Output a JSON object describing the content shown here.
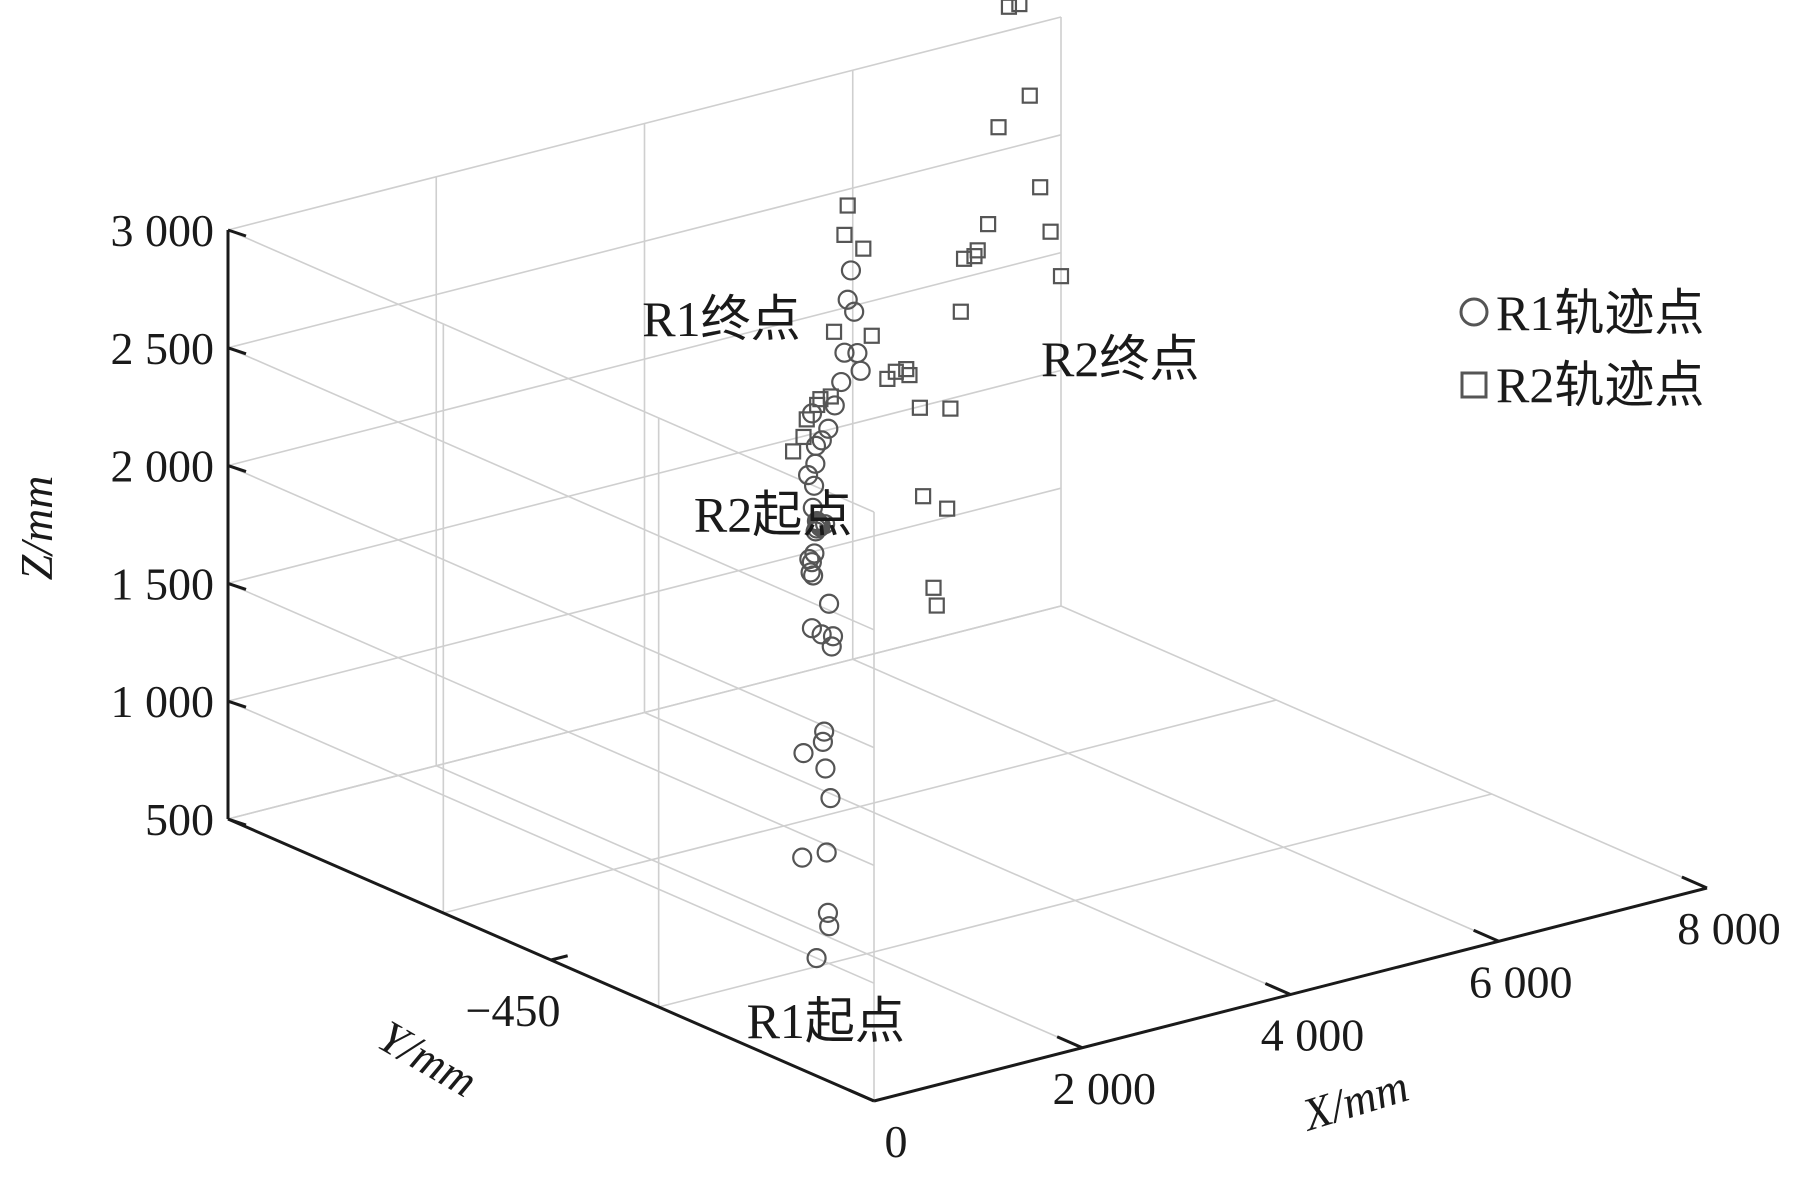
{
  "chart_data": {
    "type": "scatter",
    "projection": "3d",
    "title": "",
    "xlabel": "X/mm",
    "ylabel": "Y/mm",
    "zlabel": "Z/mm",
    "xlim": [
      0,
      8000
    ],
    "ylim": [
      -900,
      0
    ],
    "zlim": [
      500,
      3000
    ],
    "x_ticks": [
      {
        "value": 0,
        "label": "0"
      },
      {
        "value": 2000,
        "label": "2 000"
      },
      {
        "value": 4000,
        "label": "4 000"
      },
      {
        "value": 6000,
        "label": "6 000"
      },
      {
        "value": 8000,
        "label": "8 000"
      }
    ],
    "y_ticks": [
      {
        "value": -450,
        "label": "−450"
      }
    ],
    "z_ticks": [
      {
        "value": 500,
        "label": "500"
      },
      {
        "value": 1000,
        "label": "1 000"
      },
      {
        "value": 1500,
        "label": "1 500"
      },
      {
        "value": 2000,
        "label": "2 000"
      },
      {
        "value": 2500,
        "label": "2 500"
      },
      {
        "value": 3000,
        "label": "3 000"
      }
    ],
    "grid": true,
    "legend_position": "top-right",
    "legend": [
      {
        "marker": "circle",
        "label": "R1轨迹点"
      },
      {
        "marker": "square",
        "label": "R2轨迹点"
      }
    ],
    "annotations": [
      {
        "text": "R1起点",
        "series": "R1",
        "point": "start"
      },
      {
        "text": "R1终点",
        "series": "R1",
        "point": "end"
      },
      {
        "text": "R2起点",
        "series": "R2",
        "point": "start"
      },
      {
        "text": "R2终点",
        "series": "R2",
        "point": "end"
      }
    ],
    "series": [
      {
        "name": "R1轨迹点",
        "marker": "circle",
        "color": "#555555",
        "x": [
          0,
          0,
          150,
          300,
          450,
          600,
          750,
          900,
          1050,
          1200,
          1350,
          1500,
          1650,
          1800,
          1950,
          2050,
          2150,
          2200,
          2300,
          2400,
          2550,
          2700,
          2850,
          3000,
          3150,
          3300,
          3450,
          3600,
          3750,
          3900,
          4000,
          4100,
          4250,
          4400,
          4600,
          4800,
          5000,
          5200,
          5300,
          5400,
          5500,
          5600,
          5700,
          5800
        ],
        "y": [
          -820,
          -800,
          -780,
          -770,
          -760,
          -740,
          -720,
          -700,
          -680,
          -660,
          -640,
          -620,
          -600,
          -580,
          -560,
          -540,
          -520,
          -500,
          -480,
          -460,
          -440,
          -420,
          -400,
          -380,
          -360,
          -340,
          -320,
          -300,
          -280,
          -260,
          -240,
          -220,
          -200,
          -180,
          -160,
          -140,
          -120,
          -100,
          -90,
          -80,
          -70,
          -60,
          -50,
          -40
        ],
        "z": [
          1000,
          1400,
          1800,
          2300,
          2700,
          2200,
          1700,
          1700,
          1500,
          1100,
          800,
          700,
          1200,
          1800,
          1800,
          1900,
          2200,
          2500,
          2600,
          2300,
          1900,
          1800,
          1800,
          1700,
          1750,
          1800,
          1800,
          1750,
          1700,
          1650,
          1600,
          1650,
          1700,
          1750,
          1800,
          1800,
          1850,
          1900,
          2000,
          2200,
          2300,
          2100,
          1900,
          1800
        ]
      },
      {
        "name": "R2轨迹点",
        "marker": "square",
        "color": "#555555",
        "x": [
          4600,
          4700,
          4800,
          4900,
          5000,
          5100,
          5200,
          5300,
          5400,
          5550,
          5700,
          5850,
          6000,
          6100,
          6200,
          6300,
          6400,
          6500,
          6600,
          6700,
          6800,
          6900,
          7000,
          7100,
          7200,
          7300,
          7400,
          7500,
          7600,
          7700,
          7800,
          7900,
          8000
        ],
        "y": [
          -120,
          -120,
          -110,
          -110,
          -100,
          -100,
          -90,
          -90,
          -80,
          -80,
          -70,
          -70,
          -60,
          -60,
          -50,
          -50,
          -40,
          -40,
          -30,
          -30,
          -20,
          -20,
          -10,
          -10,
          0,
          0,
          0,
          0,
          0,
          0,
          0,
          0,
          0
        ],
        "z": [
          1700,
          1750,
          1800,
          1850,
          1850,
          1850,
          2100,
          2500,
          2600,
          2400,
          2000,
          1800,
          1800,
          1800,
          1750,
          1600,
          1200,
          800,
          700,
          1100,
          1500,
          1900,
          2100,
          2100,
          2100,
          2200,
          2600,
          3100,
          3100,
          2700,
          2300,
          2100,
          1900
        ]
      }
    ]
  }
}
